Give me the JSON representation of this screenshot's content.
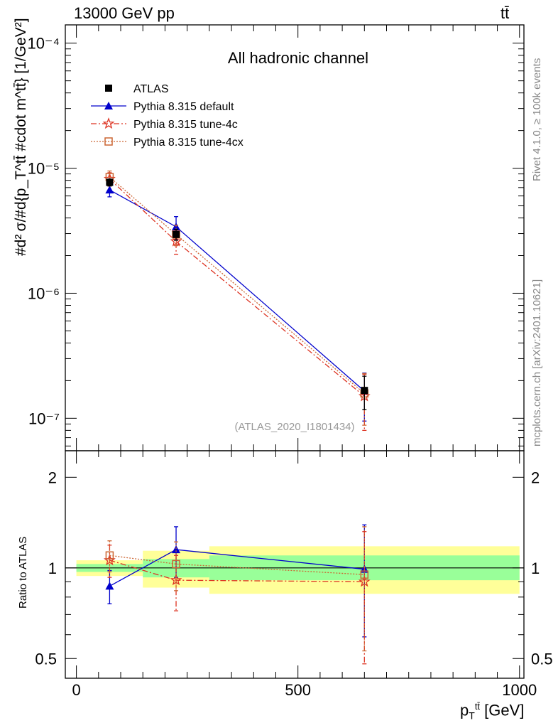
{
  "header": {
    "left": "13000 GeV pp",
    "right": "tt̄"
  },
  "side_text": {
    "rivet": "Rivet 4.1.0, ≥ 100k events",
    "mcplots": "mcplots.cern.ch [arXiv:2401.10621]"
  },
  "axis_labels": {
    "main_y": "#d² σ/#d{p_T^tt̄ #cdot m^tt̄} [1/GeV²]",
    "ratio_y": "Ratio to ATLAS",
    "x_main": "p",
    "x_sub": "T",
    "x_sup": "tt̄",
    "x_unit": "[GeV]"
  },
  "colors": {
    "atlas": "#000000",
    "default": "#0000cc",
    "tune4c": "#dd3322",
    "tune4cx": "#cc6633",
    "band_inner": "#99ff99",
    "band_outer": "#ffff99"
  },
  "chart_data": [
    {
      "type": "scatter",
      "panel": "main",
      "title": "All hadronic channel",
      "watermark": "(ATLAS_2020_I1801434)",
      "yscale": "log",
      "ylim": [
        5.5e-08,
        0.00014
      ],
      "xlim": [
        -25,
        1010
      ],
      "x_ticks": [
        0,
        500,
        1000
      ],
      "y_ticks": [
        {
          "value": 1e-07,
          "label": "10⁻⁷"
        },
        {
          "value": 1e-06,
          "label": "10⁻⁶"
        },
        {
          "value": 1e-05,
          "label": "10⁻⁵"
        },
        {
          "value": 0.0001,
          "label": "10⁻⁴"
        }
      ],
      "series": [
        {
          "name": "ATLAS",
          "key": "atlas",
          "x": [
            75,
            225,
            650
          ],
          "values": [
            7.7e-06,
            2.95e-06,
            1.67e-07
          ],
          "err_lo": [
            5e-07,
            3e-07,
            5e-08
          ],
          "err_hi": [
            5e-07,
            3e-07,
            5e-08
          ]
        },
        {
          "name": "Pythia 8.315 default",
          "key": "default",
          "x": [
            75,
            225,
            650
          ],
          "values": [
            6.7e-06,
            3.4e-06,
            1.65e-07
          ],
          "err_lo": [
            8e-07,
            7e-07,
            7e-08
          ],
          "err_hi": [
            8e-07,
            7e-07,
            6.5e-08
          ]
        },
        {
          "name": "Pythia 8.315 tune-4c",
          "key": "tune4c",
          "x": [
            75,
            225,
            650
          ],
          "values": [
            8.2e-06,
            2.6e-06,
            1.5e-07
          ],
          "err_lo": [
            1e-06,
            5.5e-07,
            7e-08
          ],
          "err_hi": [
            1e-06,
            5.5e-07,
            7.5e-08
          ]
        },
        {
          "name": "Pythia 8.315 tune-4cx",
          "key": "tune4cx",
          "x": [
            75,
            225,
            650
          ],
          "values": [
            8.5e-06,
            2.95e-06,
            1.58e-07
          ],
          "err_lo": [
            1e-06,
            5.5e-07,
            7e-08
          ],
          "err_hi": [
            1e-06,
            5.5e-07,
            7e-08
          ]
        }
      ]
    },
    {
      "type": "scatter",
      "panel": "ratio",
      "ylabel": "Ratio to ATLAS",
      "yscale": "log",
      "ylim": [
        0.43,
        2.45
      ],
      "xlim": [
        -25,
        1010
      ],
      "x_ticks": [
        {
          "value": 0,
          "label": "0"
        },
        {
          "value": 500,
          "label": "500"
        },
        {
          "value": 1000,
          "label": "1000"
        }
      ],
      "y_ticks": [
        {
          "value": 0.5,
          "label": "0.5"
        },
        {
          "value": 1,
          "label": "1"
        },
        {
          "value": 2,
          "label": "2"
        }
      ],
      "bands": [
        {
          "x": [
            0,
            150
          ],
          "inner": [
            0.97,
            1.03
          ],
          "outer": [
            0.94,
            1.06
          ]
        },
        {
          "x": [
            150,
            300
          ],
          "inner": [
            0.93,
            1.07
          ],
          "outer": [
            0.86,
            1.14
          ]
        },
        {
          "x": [
            300,
            1000
          ],
          "inner": [
            0.91,
            1.1
          ],
          "outer": [
            0.82,
            1.18
          ]
        }
      ],
      "series": [
        {
          "name": "Pythia 8.315 default",
          "key": "default",
          "x": [
            75,
            225,
            650
          ],
          "values": [
            0.87,
            1.15,
            0.99
          ],
          "err_lo": [
            0.11,
            0.22,
            0.4
          ],
          "err_hi": [
            0.11,
            0.22,
            0.4
          ]
        },
        {
          "name": "Pythia 8.315 tune-4c",
          "key": "tune4c",
          "x": [
            75,
            225,
            650
          ],
          "values": [
            1.06,
            0.91,
            0.9
          ],
          "err_lo": [
            0.13,
            0.19,
            0.42
          ],
          "err_hi": [
            0.13,
            0.19,
            0.42
          ]
        },
        {
          "name": "Pythia 8.315 tune-4cx",
          "key": "tune4cx",
          "x": [
            75,
            225,
            650
          ],
          "values": [
            1.1,
            1.03,
            0.95
          ],
          "err_lo": [
            0.13,
            0.19,
            0.42
          ],
          "err_hi": [
            0.13,
            0.19,
            0.42
          ]
        }
      ]
    }
  ]
}
